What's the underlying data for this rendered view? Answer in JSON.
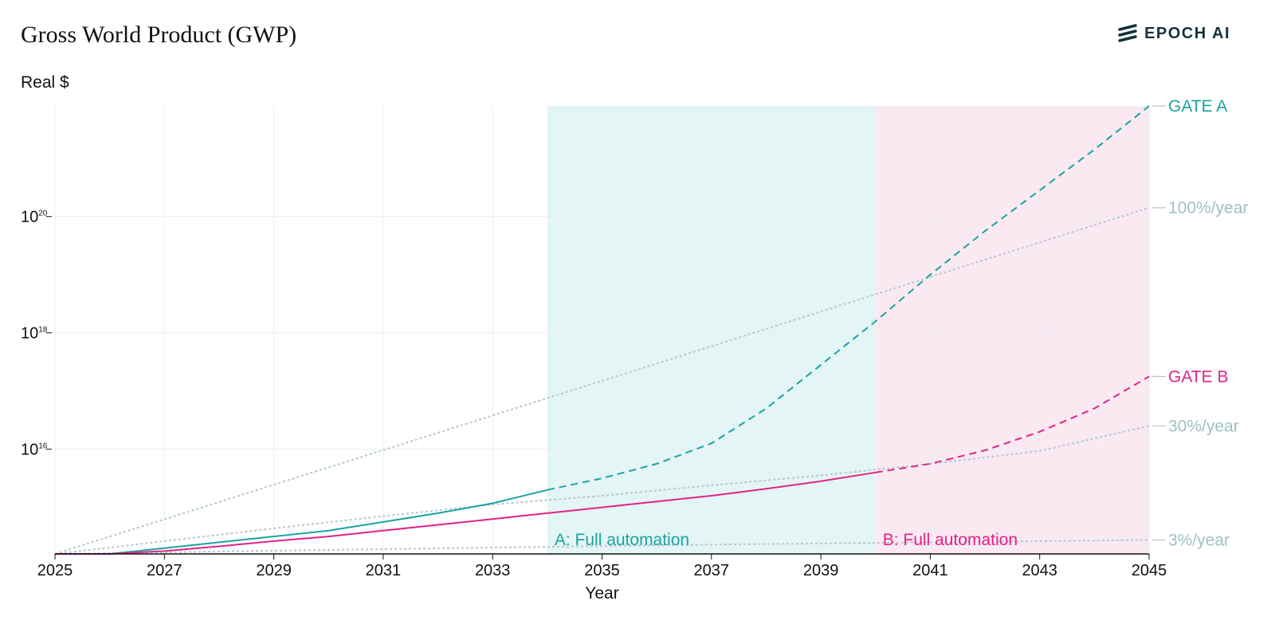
{
  "header": {
    "title": "Gross World Product (GWP)",
    "subtitle": "Real $",
    "brand": "EPOCH AI"
  },
  "colors": {
    "gate_a": "#1aa3a3",
    "gate_b": "#e0238a",
    "reference": "#b4c8cc",
    "region_a": "#e3f5f4",
    "region_b": "#fbe9f2",
    "grid": "#e8eef0"
  },
  "chart_data": {
    "type": "line",
    "title": "Gross World Product (GWP)",
    "ylabel": "Real $",
    "xlabel": "Year",
    "y_scale": "log",
    "xlim": [
      2025,
      2045
    ],
    "ylim_log10": [
      14.2,
      21.9
    ],
    "x_ticks": [
      2025,
      2027,
      2029,
      2031,
      2033,
      2035,
      2037,
      2039,
      2041,
      2043,
      2045
    ],
    "y_ticks": [
      {
        "base": "10",
        "exp": "16",
        "value": 1e+16
      },
      {
        "base": "10",
        "exp": "18",
        "value": 1e+18
      },
      {
        "base": "10",
        "exp": "20",
        "value": 1e+20
      }
    ],
    "regions": [
      {
        "label": "A: Full automation",
        "x_start": 2034,
        "x_end": 2040,
        "color": "#e3f5f4",
        "label_color": "#1aa3a3"
      },
      {
        "label": "B: Full automation",
        "x_start": 2040,
        "x_end": 2045,
        "color": "#fbe9f2",
        "label_color": "#e0238a"
      }
    ],
    "series": [
      {
        "name": "GATE A",
        "color": "#1aa3a3",
        "solid": [
          [
            2025,
            14.2
          ],
          [
            2026,
            14.2
          ],
          [
            2027,
            14.3
          ],
          [
            2028,
            14.4
          ],
          [
            2029,
            14.5
          ],
          [
            2030,
            14.6
          ],
          [
            2031,
            14.75
          ],
          [
            2032,
            14.9
          ],
          [
            2033,
            15.07
          ],
          [
            2034,
            15.3
          ]
        ],
        "dashed": [
          [
            2034,
            15.3
          ],
          [
            2035,
            15.5
          ],
          [
            2036,
            15.75
          ],
          [
            2037,
            16.1
          ],
          [
            2038,
            16.7
          ],
          [
            2039,
            17.45
          ],
          [
            2040,
            18.2
          ],
          [
            2041,
            19.0
          ],
          [
            2042,
            19.75
          ],
          [
            2043,
            20.45
          ],
          [
            2044,
            21.15
          ],
          [
            2045,
            21.9
          ]
        ]
      },
      {
        "name": "GATE B",
        "color": "#e0238a",
        "solid": [
          [
            2025,
            14.2
          ],
          [
            2026,
            14.2
          ],
          [
            2027,
            14.25
          ],
          [
            2028,
            14.33
          ],
          [
            2029,
            14.42
          ],
          [
            2030,
            14.5
          ],
          [
            2031,
            14.6
          ],
          [
            2032,
            14.7
          ],
          [
            2033,
            14.8
          ],
          [
            2034,
            14.9
          ],
          [
            2035,
            15.0
          ],
          [
            2036,
            15.1
          ],
          [
            2037,
            15.2
          ],
          [
            2038,
            15.32
          ],
          [
            2039,
            15.45
          ],
          [
            2040,
            15.6
          ]
        ],
        "dashed": [
          [
            2040,
            15.6
          ],
          [
            2041,
            15.75
          ],
          [
            2042,
            15.98
          ],
          [
            2043,
            16.3
          ],
          [
            2044,
            16.7
          ],
          [
            2045,
            17.25
          ]
        ]
      },
      {
        "name": "100%/year",
        "color": "#b4c8cc",
        "reference": true,
        "points": [
          [
            2025,
            14.2
          ],
          [
            2045,
            20.15
          ]
        ]
      },
      {
        "name": "30%/year",
        "color": "#b4c8cc",
        "reference": true,
        "points": [
          [
            2025,
            14.2
          ],
          [
            2029,
            14.64
          ],
          [
            2031,
            14.85
          ],
          [
            2033,
            15.05
          ],
          [
            2035,
            15.2
          ],
          [
            2037,
            15.38
          ],
          [
            2039,
            15.55
          ],
          [
            2041,
            15.75
          ],
          [
            2043,
            15.97
          ],
          [
            2045,
            16.4
          ]
        ]
      },
      {
        "name": "3%/year",
        "color": "#b4c8cc",
        "reference": true,
        "points": [
          [
            2025,
            14.2
          ],
          [
            2033,
            14.31
          ],
          [
            2037,
            14.36
          ],
          [
            2041,
            14.4
          ],
          [
            2045,
            14.44
          ]
        ]
      }
    ],
    "end_labels": [
      {
        "text": "GATE A",
        "y": 21.9,
        "color": "#1aa3a3"
      },
      {
        "text": "100%/year",
        "y": 20.15,
        "color": "#9fc0c4"
      },
      {
        "text": "GATE B",
        "y": 17.25,
        "color": "#e0238a"
      },
      {
        "text": "30%/year",
        "y": 16.4,
        "color": "#9fc0c4"
      },
      {
        "text": "3%/year",
        "y": 14.44,
        "color": "#9fc0c4"
      }
    ]
  }
}
